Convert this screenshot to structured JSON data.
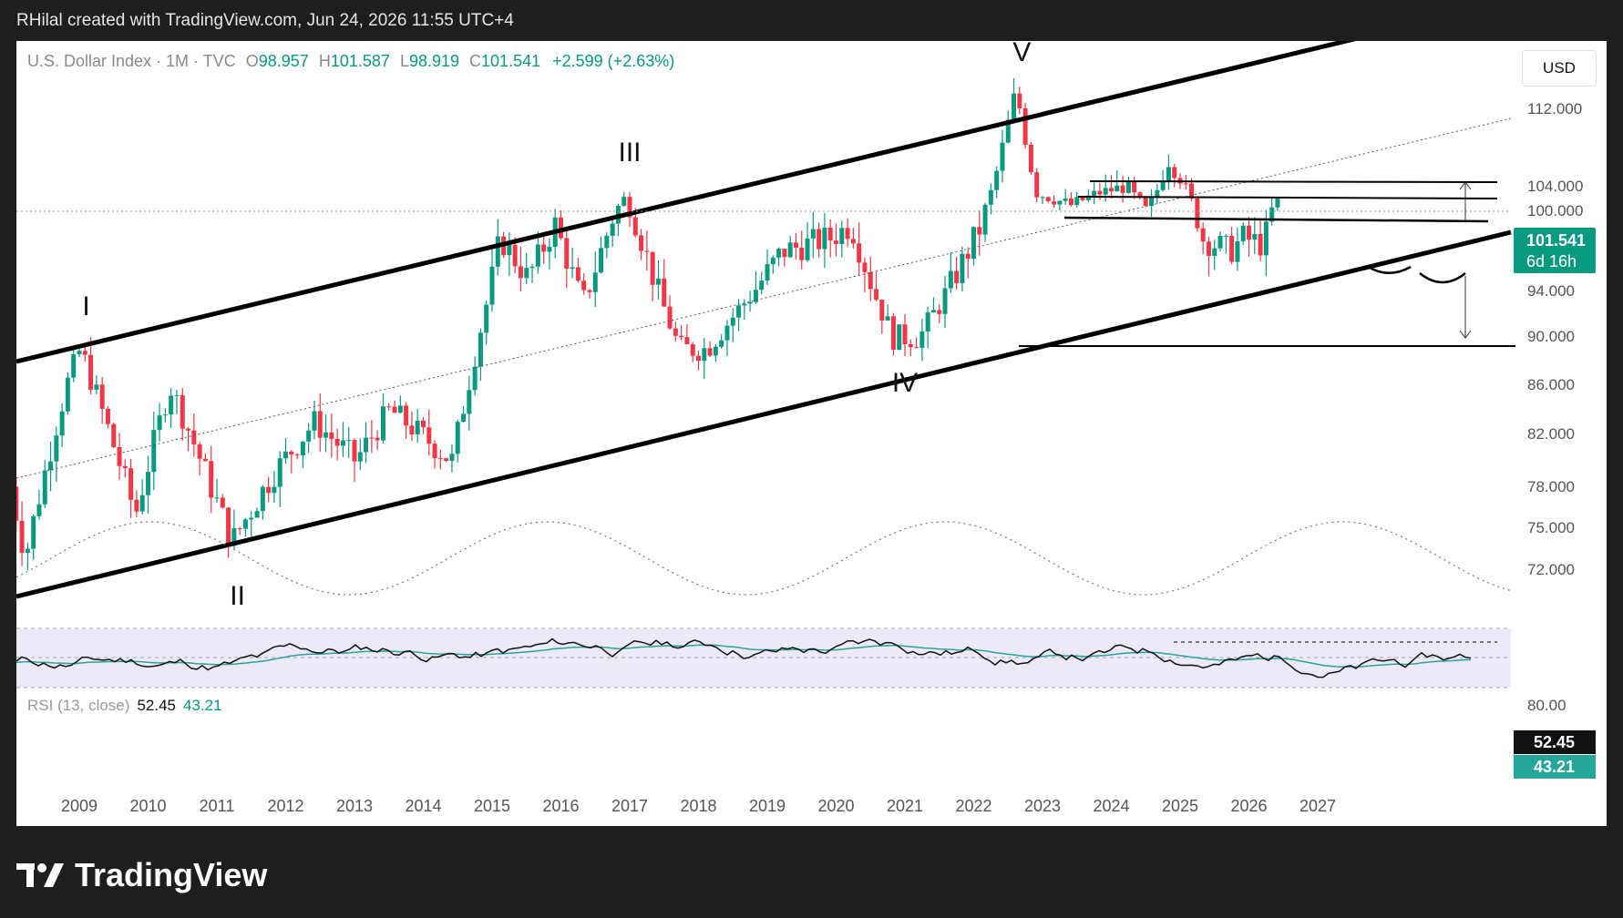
{
  "header": {
    "text": "RHilal created with TradingView.com, Jun 24, 2026 11:55 UTC+4"
  },
  "legend": {
    "symbol": "U.S. Dollar Index · 1M · TVC",
    "o_key": "O",
    "o_val": "98.957",
    "h_key": "H",
    "h_val": "101.587",
    "l_key": "L",
    "l_val": "98.919",
    "c_key": "C",
    "c_val": "101.541",
    "change": "+2.599 (+2.63%)"
  },
  "currency": "USD",
  "price_tag": {
    "price": "101.541",
    "time": "6d 16h"
  },
  "rsi": {
    "label": "RSI (13, close)",
    "value": "52.45",
    "ma": "43.21"
  },
  "brand": {
    "name": "TradingView"
  },
  "colors": {
    "up": "#089981",
    "down": "#f23645",
    "rsi_line": "#111111",
    "rsi_ma": "#26a69a",
    "band": "#ede9f7",
    "page": "#1e1e1e"
  },
  "chart_data": {
    "type": "candlestick",
    "title": "U.S. Dollar Index · 1M · TVC",
    "y_ticks": [
      "112.000",
      "104.000",
      "100.000",
      "94.000",
      "90.000",
      "86.000",
      "82.000",
      "78.000",
      "75.000",
      "72.000"
    ],
    "x_ticks": [
      "2009",
      "2010",
      "2011",
      "2012",
      "2013",
      "2014",
      "2015",
      "2016",
      "2017",
      "2018",
      "2019",
      "2020",
      "2021",
      "2022",
      "2023",
      "2024",
      "2025",
      "2026",
      "2027"
    ],
    "ylim": [
      70.0,
      115.0
    ],
    "last": {
      "open": 98.957,
      "high": 101.587,
      "low": 98.919,
      "close": 101.541
    },
    "wave_labels": [
      {
        "label": "I",
        "date": 2009.1,
        "price": 89.6
      },
      {
        "label": "II",
        "date": 2011.3,
        "price": 72.7
      },
      {
        "label": "III",
        "date": 2017.0,
        "price": 103.8
      },
      {
        "label": "IV",
        "date": 2021.0,
        "price": 89.2
      },
      {
        "label": "V",
        "date": 2022.7,
        "price": 114.8
      }
    ],
    "rsi_axis_tick": "80.00",
    "rsi_levels": [
      30,
      50,
      70
    ]
  }
}
